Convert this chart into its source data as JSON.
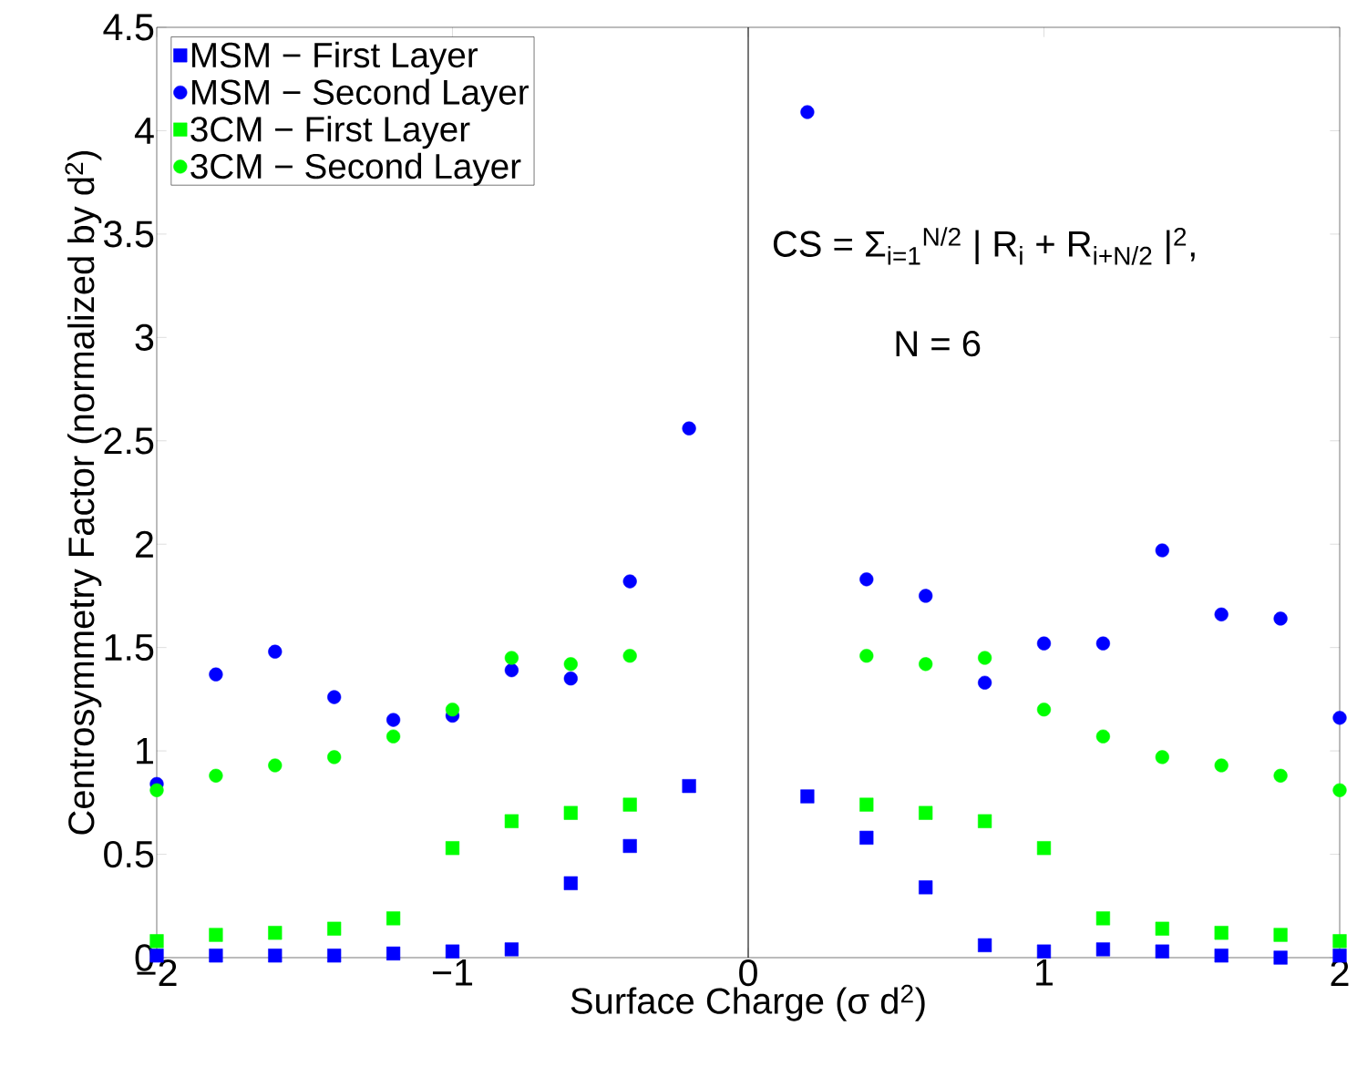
{
  "chart_data": {
    "type": "scatter",
    "xlabel": "Surface Charge (σ d$^{2}$)",
    "ylabel": "Centrosymmetry Factor (normalized by d$^{2}$)",
    "x": [
      -2,
      -1.8,
      -1.6,
      -1.4,
      -1.2,
      -1.0,
      -0.8,
      -0.6,
      -0.4,
      -0.2,
      0.2,
      0.4,
      0.6,
      0.8,
      1.0,
      1.2,
      1.4,
      1.6,
      1.8,
      2.0
    ],
    "series": [
      {
        "name": "MSM − First Layer",
        "color": "#0000ff",
        "marker": "square",
        "values": [
          0.01,
          0.01,
          0.01,
          0.01,
          0.02,
          0.03,
          0.04,
          0.36,
          0.54,
          0.83,
          0.78,
          0.58,
          0.34,
          0.06,
          0.03,
          0.04,
          0.03,
          0.01,
          0.0,
          0.01
        ]
      },
      {
        "name": "MSM − Second Layer",
        "color": "#0000ff",
        "marker": "circle",
        "values": [
          0.84,
          1.37,
          1.48,
          1.26,
          1.15,
          1.17,
          1.39,
          1.35,
          1.82,
          2.56,
          4.09,
          1.83,
          1.75,
          1.33,
          1.52,
          1.52,
          1.97,
          1.66,
          1.64,
          1.16
        ]
      },
      {
        "name": "3CM − First Layer",
        "color": "#00ff00",
        "marker": "square",
        "values": [
          0.08,
          0.11,
          0.12,
          0.14,
          0.19,
          0.53,
          0.66,
          0.7,
          0.74,
          null,
          null,
          0.74,
          0.7,
          0.66,
          0.53,
          0.19,
          0.14,
          0.12,
          0.11,
          0.08
        ]
      },
      {
        "name": "3CM − Second Layer",
        "color": "#00ff00",
        "marker": "circle",
        "values": [
          0.81,
          0.88,
          0.93,
          0.97,
          1.07,
          1.2,
          1.45,
          1.42,
          1.46,
          null,
          null,
          1.46,
          1.42,
          1.45,
          1.2,
          1.07,
          0.97,
          0.93,
          0.88,
          0.81
        ]
      }
    ],
    "xlim": [
      -2,
      2
    ],
    "xticks": [
      {
        "value": -2,
        "label": "−2"
      },
      {
        "value": -1,
        "label": "−1"
      },
      0,
      1,
      2
    ],
    "ylim": [
      0,
      4.5
    ],
    "yticks": [
      0,
      0.5,
      1,
      1.5,
      2,
      2.5,
      3,
      3.5,
      4,
      4.5
    ],
    "ref_lines": [
      {
        "axis": "x",
        "value": 0,
        "color": "#000000"
      }
    ],
    "annotations": [
      "CS = Σ$_{i=1}$$^{N/2}$ | R$_{i}$ + R$_{i+N/2}$ |$^{2}$,",
      "N = 6"
    ],
    "grid": false,
    "legend": "top left"
  }
}
